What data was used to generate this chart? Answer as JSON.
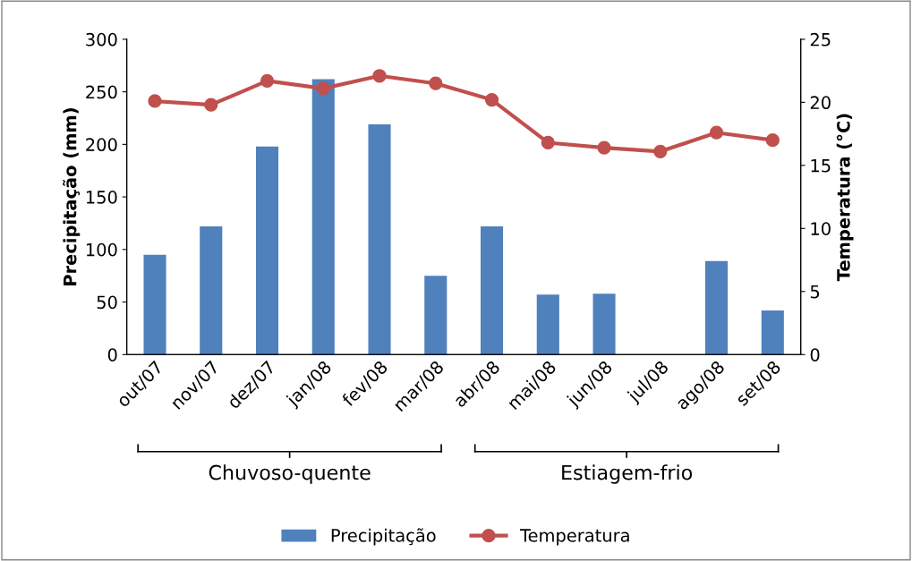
{
  "chart_data": {
    "type": "bar",
    "categories": [
      "out/07",
      "nov/07",
      "dez/07",
      "jan/08",
      "fev/08",
      "mar/08",
      "abr/08",
      "mai/08",
      "jun/08",
      "jul/08",
      "ago/08",
      "set/08"
    ],
    "series": [
      {
        "name": "Precipitação",
        "color": "#4f81bd",
        "values": [
          95,
          122,
          198,
          262,
          219,
          75,
          122,
          57,
          58,
          0,
          89,
          42
        ]
      },
      {
        "name": "Temperatura",
        "type": "line",
        "axis": "y2",
        "color": "#c0504d",
        "marker": "circle",
        "values": [
          20.1,
          19.8,
          21.7,
          21.1,
          22.1,
          21.5,
          20.2,
          16.8,
          16.4,
          16.1,
          17.6,
          17.0
        ]
      }
    ],
    "ylabel": "Precipitação (mm)",
    "y2label": "Temperatura (°C)",
    "ylim": [
      0,
      300
    ],
    "yticks": [
      0,
      50,
      100,
      150,
      200,
      250,
      300
    ],
    "y2lim": [
      0,
      25
    ],
    "y2ticks": [
      0,
      5,
      10,
      15,
      20,
      25
    ],
    "annotations": [
      "Chuvoso-quente",
      "Estiagem-frio"
    ],
    "grid": false,
    "legend": "bottom"
  }
}
